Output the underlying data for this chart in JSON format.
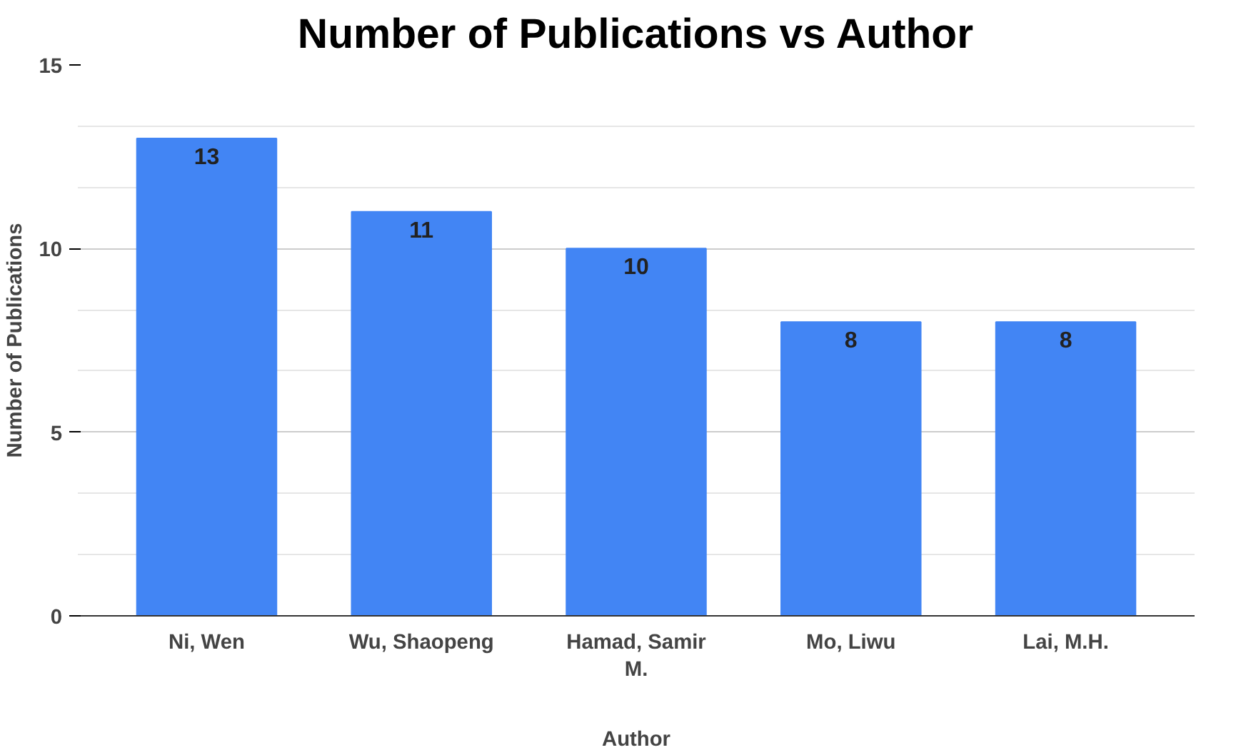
{
  "chart_data": {
    "type": "bar",
    "title": "Number of Publications vs Author",
    "xlabel": "Author",
    "ylabel": "Number of Publications",
    "categories": [
      "Ni, Wen",
      "Wu, Shaopeng",
      "Hamad, Samir M.",
      "Mo, Liwu",
      "Lai, M.H."
    ],
    "values": [
      13,
      11,
      10,
      8,
      8
    ],
    "color": "#4285f4",
    "data_labels": true,
    "ylim": [
      0,
      15
    ],
    "yticks": [
      0,
      {
        "value": 1.67,
        "label": null
      },
      {
        "value": 3.33,
        "label": null
      },
      5,
      {
        "value": 6.67,
        "label": null
      },
      {
        "value": 8.33,
        "label": null
      },
      10,
      {
        "value": 11.67,
        "label": null
      },
      {
        "value": 13.33,
        "label": null
      },
      15
    ],
    "grid": "y"
  }
}
